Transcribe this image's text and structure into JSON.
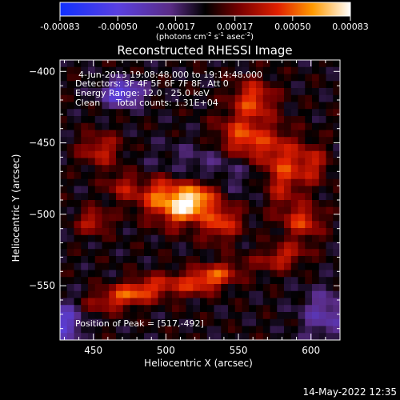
{
  "chart_data": {
    "type": "heatmap",
    "title": "Reconstructed RHESSI Image",
    "xlabel": "Heliocentric X (arcsec)",
    "ylabel": "Heliocentric Y (arcsec)",
    "xlim": [
      427,
      620
    ],
    "ylim": [
      -588,
      -392
    ],
    "x_ticks": [
      450,
      500,
      550,
      600
    ],
    "y_ticks": [
      -400,
      -450,
      -500,
      -550
    ],
    "colorbar": {
      "range": [
        -0.00083,
        0.00083
      ],
      "tick_values": [
        -0.00083,
        -0.0005,
        -0.00017,
        0.00017,
        0.0005,
        0.00083
      ],
      "tick_labels": [
        "-0.00083",
        "-0.00050",
        "-0.00017",
        "0.00017",
        "0.00050",
        "0.00083"
      ],
      "units_text": "(photons cm",
      "units_exp1": "-2",
      "units_mid": " s",
      "units_exp2": "-1",
      "units_mid2": " asec",
      "units_exp3": "-2",
      "units_end": ")"
    },
    "annotations": {
      "time_range": "4-Jun-2013 19:08:48.000 to 19:14:48.000",
      "detectors": "Detectors: 3F 4F 5F 6F 7F 8F, Att 0",
      "energy": "Energy Range: 12.0 - 25.0 keV",
      "method": "Clean",
      "counts": "Total counts: 1.31E+04",
      "peak": "Position of Peak = [517,-492]"
    },
    "peak": {
      "x": 517,
      "y": -492
    },
    "features": [
      {
        "cx": 517,
        "cy": -492,
        "sx": 13,
        "sy": 8,
        "amp": 0.00083,
        "rot": 35
      },
      {
        "cx": 497,
        "cy": -486,
        "sx": 12,
        "sy": 9,
        "amp": 0.00055,
        "rot": 20
      },
      {
        "cx": 538,
        "cy": -505,
        "sx": 10,
        "sy": 9,
        "amp": 0.00045,
        "rot": 30
      },
      {
        "cx": 555,
        "cy": -448,
        "sx": 14,
        "sy": 10,
        "amp": 0.0005,
        "rot": -20
      },
      {
        "cx": 560,
        "cy": -420,
        "sx": 10,
        "sy": 10,
        "amp": 0.00045,
        "rot": 0
      },
      {
        "cx": 580,
        "cy": -470,
        "sx": 9,
        "sy": 18,
        "amp": 0.00042,
        "rot": 0
      },
      {
        "cx": 600,
        "cy": -465,
        "sx": 8,
        "sy": 10,
        "amp": 0.00035,
        "rot": 0
      },
      {
        "cx": 478,
        "cy": -555,
        "sx": 22,
        "sy": 6,
        "amp": 0.0005,
        "rot": 15
      },
      {
        "cx": 530,
        "cy": -545,
        "sx": 15,
        "sy": 6,
        "amp": 0.0005,
        "rot": 18
      },
      {
        "cx": 580,
        "cy": -530,
        "sx": 12,
        "sy": 6,
        "amp": 0.00035,
        "rot": 15
      },
      {
        "cx": 455,
        "cy": -455,
        "sx": 10,
        "sy": 8,
        "amp": 0.00035,
        "rot": 0
      },
      {
        "cx": 450,
        "cy": -505,
        "sx": 8,
        "sy": 6,
        "amp": 0.00035,
        "rot": 0
      },
      {
        "cx": 595,
        "cy": -505,
        "sx": 9,
        "sy": 8,
        "amp": 0.0004,
        "rot": 0
      },
      {
        "cx": 470,
        "cy": -480,
        "sx": 8,
        "sy": 7,
        "amp": 0.0003,
        "rot": 0
      },
      {
        "cx": 470,
        "cy": -415,
        "sx": 10,
        "sy": 6,
        "amp": -0.00055,
        "rot": 0
      },
      {
        "cx": 430,
        "cy": -575,
        "sx": 9,
        "sy": 10,
        "amp": -0.00045,
        "rot": 0
      },
      {
        "cx": 610,
        "cy": -570,
        "sx": 12,
        "sy": 12,
        "amp": -0.0003,
        "rot": 0
      }
    ]
  },
  "footer": {
    "timestamp": "14-May-2022 12:35"
  }
}
